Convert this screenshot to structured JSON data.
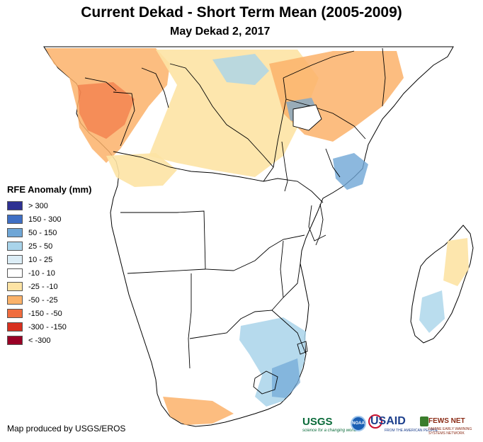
{
  "title": "Current Dekad - Short Term Mean (2005-2009)",
  "subtitle": "May Dekad 2, 2017",
  "legend": {
    "title": "RFE Anomaly (mm)",
    "items": [
      {
        "label": "> 300",
        "color": "#2e3192"
      },
      {
        "label": "150 - 300",
        "color": "#3f6fc4"
      },
      {
        "label": "50 - 150",
        "color": "#6fa6d6"
      },
      {
        "label": "25 - 50",
        "color": "#a9d4ea"
      },
      {
        "label": "10 - 25",
        "color": "#dcedf6"
      },
      {
        "label": "-10 - 10",
        "color": "#ffffff"
      },
      {
        "label": "-25 - -10",
        "color": "#fde3a4"
      },
      {
        "label": "-50 - -25",
        "color": "#fbb26a"
      },
      {
        "label": "-150 - -50",
        "color": "#f06c3e"
      },
      {
        "label": "-300 - -150",
        "color": "#d7301f"
      },
      {
        "label": "< -300",
        "color": "#990025"
      }
    ]
  },
  "credit": "Map produced by USGS/EROS",
  "logos": {
    "usgs": "USGS",
    "usgs_tagline": "science for a changing world",
    "noaa": "NOAA",
    "usaid": "USAID",
    "usaid_tagline": "FROM THE AMERICAN PEOPLE",
    "fews": "FEWS NET",
    "fews_tagline": "FAMINE EARLY WARNING SYSTEMS NETWORK"
  },
  "colors": {
    "land": "#ffffff",
    "border": "#000000",
    "water": "#ffffff"
  }
}
